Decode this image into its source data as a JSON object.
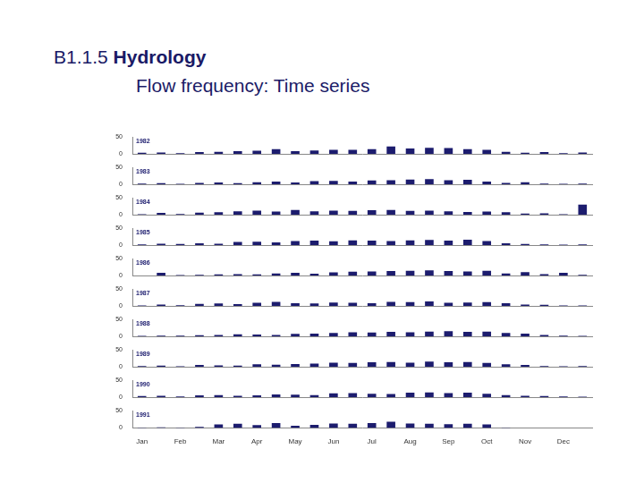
{
  "title": "B1.1.5",
  "heading": "Hydrology",
  "subtitle": "Flow frequency: Time series",
  "chart_data": [
    {
      "type": "bar",
      "title": "1982",
      "categories": [
        "Jan",
        null,
        "Feb",
        null,
        "Mar",
        null,
        "Apr",
        null,
        "May",
        null,
        "Jun",
        null,
        "Jul",
        null,
        "Aug",
        null,
        "Sep",
        null,
        "Oct",
        null,
        "Nov",
        null,
        "Dec",
        null
      ],
      "values": [
        3,
        4,
        2,
        5,
        6,
        8,
        9,
        14,
        8,
        10,
        12,
        12,
        14,
        22,
        16,
        18,
        17,
        14,
        12,
        6,
        3,
        5,
        2,
        4
      ],
      "color": "#1c1c6e",
      "ylim": [
        0,
        50
      ],
      "yticks": [
        0,
        50
      ],
      "grid": false,
      "tick_labels": "y"
    },
    {
      "type": "bar",
      "title": "1983",
      "categories": [
        "Jan",
        null,
        "Feb",
        null,
        "Mar",
        null,
        "Apr",
        null,
        "May",
        null,
        "Jun",
        null,
        "Jul",
        null,
        "Aug",
        null,
        "Sep",
        null,
        "Oct",
        null,
        "Nov",
        null,
        "Dec",
        null
      ],
      "values": [
        2,
        3,
        1,
        4,
        5,
        3,
        6,
        8,
        5,
        9,
        10,
        8,
        11,
        12,
        14,
        15,
        12,
        13,
        8,
        4,
        6,
        2,
        1,
        2
      ],
      "color": "#1c1c6e",
      "ylim": [
        0,
        50
      ],
      "yticks": [
        0,
        50
      ],
      "grid": false,
      "tick_labels": "y"
    },
    {
      "type": "bar",
      "title": "1984",
      "categories": [
        "Jan",
        null,
        "Feb",
        null,
        "Mar",
        null,
        "Apr",
        null,
        "May",
        null,
        "Jun",
        null,
        "Jul",
        null,
        "Aug",
        null,
        "Sep",
        null,
        "Oct",
        null,
        "Nov",
        null,
        "Dec",
        null
      ],
      "values": [
        1,
        5,
        2,
        6,
        7,
        10,
        12,
        9,
        14,
        10,
        12,
        11,
        13,
        14,
        11,
        12,
        10,
        8,
        9,
        7,
        3,
        4,
        1,
        30
      ],
      "color": "#1c1c6e",
      "ylim": [
        0,
        50
      ],
      "yticks": [
        0,
        50
      ],
      "grid": false,
      "tick_labels": "y"
    },
    {
      "type": "bar",
      "title": "1985",
      "categories": [
        "Jan",
        null,
        "Feb",
        null,
        "Mar",
        null,
        "Apr",
        null,
        "May",
        null,
        "Jun",
        null,
        "Jul",
        null,
        "Aug",
        null,
        "Sep",
        null,
        "Oct",
        null,
        "Nov",
        null,
        "Dec",
        null
      ],
      "values": [
        2,
        4,
        3,
        5,
        4,
        9,
        10,
        8,
        12,
        13,
        11,
        14,
        13,
        12,
        14,
        15,
        13,
        16,
        12,
        5,
        3,
        2,
        1,
        2
      ],
      "color": "#1c1c6e",
      "ylim": [
        0,
        50
      ],
      "yticks": [
        0,
        50
      ],
      "grid": false,
      "tick_labels": "y"
    },
    {
      "type": "bar",
      "title": "1986",
      "categories": [
        "Jan",
        null,
        "Feb",
        null,
        "Mar",
        null,
        "Apr",
        null,
        "May",
        null,
        "Jun",
        null,
        "Jul",
        null,
        "Aug",
        null,
        "Sep",
        null,
        "Oct",
        null,
        "Nov",
        null,
        "Dec",
        null
      ],
      "values": [
        0,
        8,
        1,
        2,
        3,
        4,
        3,
        6,
        8,
        5,
        9,
        11,
        12,
        13,
        14,
        15,
        13,
        12,
        14,
        6,
        10,
        4,
        8,
        2
      ],
      "color": "#1c1c6e",
      "ylim": [
        0,
        50
      ],
      "yticks": [
        0,
        50
      ],
      "grid": false,
      "tick_labels": "y"
    },
    {
      "type": "bar",
      "title": "1987",
      "categories": [
        "Jan",
        null,
        "Feb",
        null,
        "Mar",
        null,
        "Apr",
        null,
        "May",
        null,
        "Jun",
        null,
        "Jul",
        null,
        "Aug",
        null,
        "Sep",
        null,
        "Oct",
        null,
        "Nov",
        null,
        "Dec",
        null
      ],
      "values": [
        1,
        4,
        2,
        6,
        7,
        5,
        9,
        12,
        8,
        7,
        10,
        9,
        8,
        12,
        11,
        13,
        9,
        10,
        11,
        8,
        4,
        3,
        1,
        1
      ],
      "color": "#1c1c6e",
      "ylim": [
        0,
        50
      ],
      "yticks": [
        0,
        50
      ],
      "grid": false,
      "tick_labels": "y"
    },
    {
      "type": "bar",
      "title": "1988",
      "categories": [
        "Jan",
        null,
        "Feb",
        null,
        "Mar",
        null,
        "Apr",
        null,
        "May",
        null,
        "Jun",
        null,
        "Jul",
        null,
        "Aug",
        null,
        "Sep",
        null,
        "Oct",
        null,
        "Nov",
        null,
        "Dec",
        null
      ],
      "values": [
        1,
        2,
        2,
        3,
        4,
        6,
        5,
        4,
        7,
        8,
        10,
        12,
        11,
        13,
        12,
        14,
        15,
        13,
        14,
        10,
        8,
        4,
        2,
        1
      ],
      "color": "#1c1c6e",
      "ylim": [
        0,
        50
      ],
      "yticks": [
        0,
        50
      ],
      "grid": false,
      "tick_labels": "y"
    },
    {
      "type": "bar",
      "title": "1989",
      "categories": [
        "Jan",
        null,
        "Feb",
        null,
        "Mar",
        null,
        "Apr",
        null,
        "May",
        null,
        "Jun",
        null,
        "Jul",
        null,
        "Aug",
        null,
        "Sep",
        null,
        "Oct",
        null,
        "Nov",
        null,
        "Dec",
        null
      ],
      "values": [
        2,
        3,
        1,
        5,
        4,
        3,
        7,
        6,
        8,
        9,
        12,
        11,
        13,
        14,
        12,
        15,
        13,
        14,
        11,
        7,
        5,
        2,
        1,
        2
      ],
      "color": "#1c1c6e",
      "ylim": [
        0,
        50
      ],
      "yticks": [
        0,
        50
      ],
      "grid": false,
      "tick_labels": "y"
    },
    {
      "type": "bar",
      "title": "1990",
      "categories": [
        "Jan",
        null,
        "Feb",
        null,
        "Mar",
        null,
        "Apr",
        null,
        "May",
        null,
        "Jun",
        null,
        "Jul",
        null,
        "Aug",
        null,
        "Sep",
        null,
        "Oct",
        null,
        "Nov",
        null,
        "Dec",
        null
      ],
      "values": [
        3,
        4,
        2,
        5,
        6,
        4,
        5,
        8,
        7,
        6,
        11,
        12,
        10,
        9,
        13,
        14,
        12,
        13,
        10,
        6,
        4,
        3,
        2,
        1
      ],
      "color": "#1c1c6e",
      "ylim": [
        0,
        50
      ],
      "yticks": [
        0,
        50
      ],
      "grid": false,
      "tick_labels": "y"
    },
    {
      "type": "bar",
      "title": "1991",
      "categories": [
        "Jan",
        null,
        "Feb",
        null,
        "Mar",
        null,
        "Apr",
        null,
        "May",
        null,
        "Jun",
        null,
        "Jul",
        null,
        "Aug",
        null,
        "Sep",
        null,
        "Oct",
        null,
        "Nov",
        null,
        "Dec",
        null
      ],
      "values": [
        1,
        2,
        1,
        3,
        10,
        12,
        8,
        14,
        6,
        9,
        13,
        12,
        14,
        18,
        13,
        12,
        11,
        12,
        10,
        1,
        null,
        null,
        null,
        null
      ],
      "color": "#1c1c6e",
      "ylim": [
        0,
        50
      ],
      "yticks": [
        0,
        50
      ],
      "grid": false
    }
  ]
}
